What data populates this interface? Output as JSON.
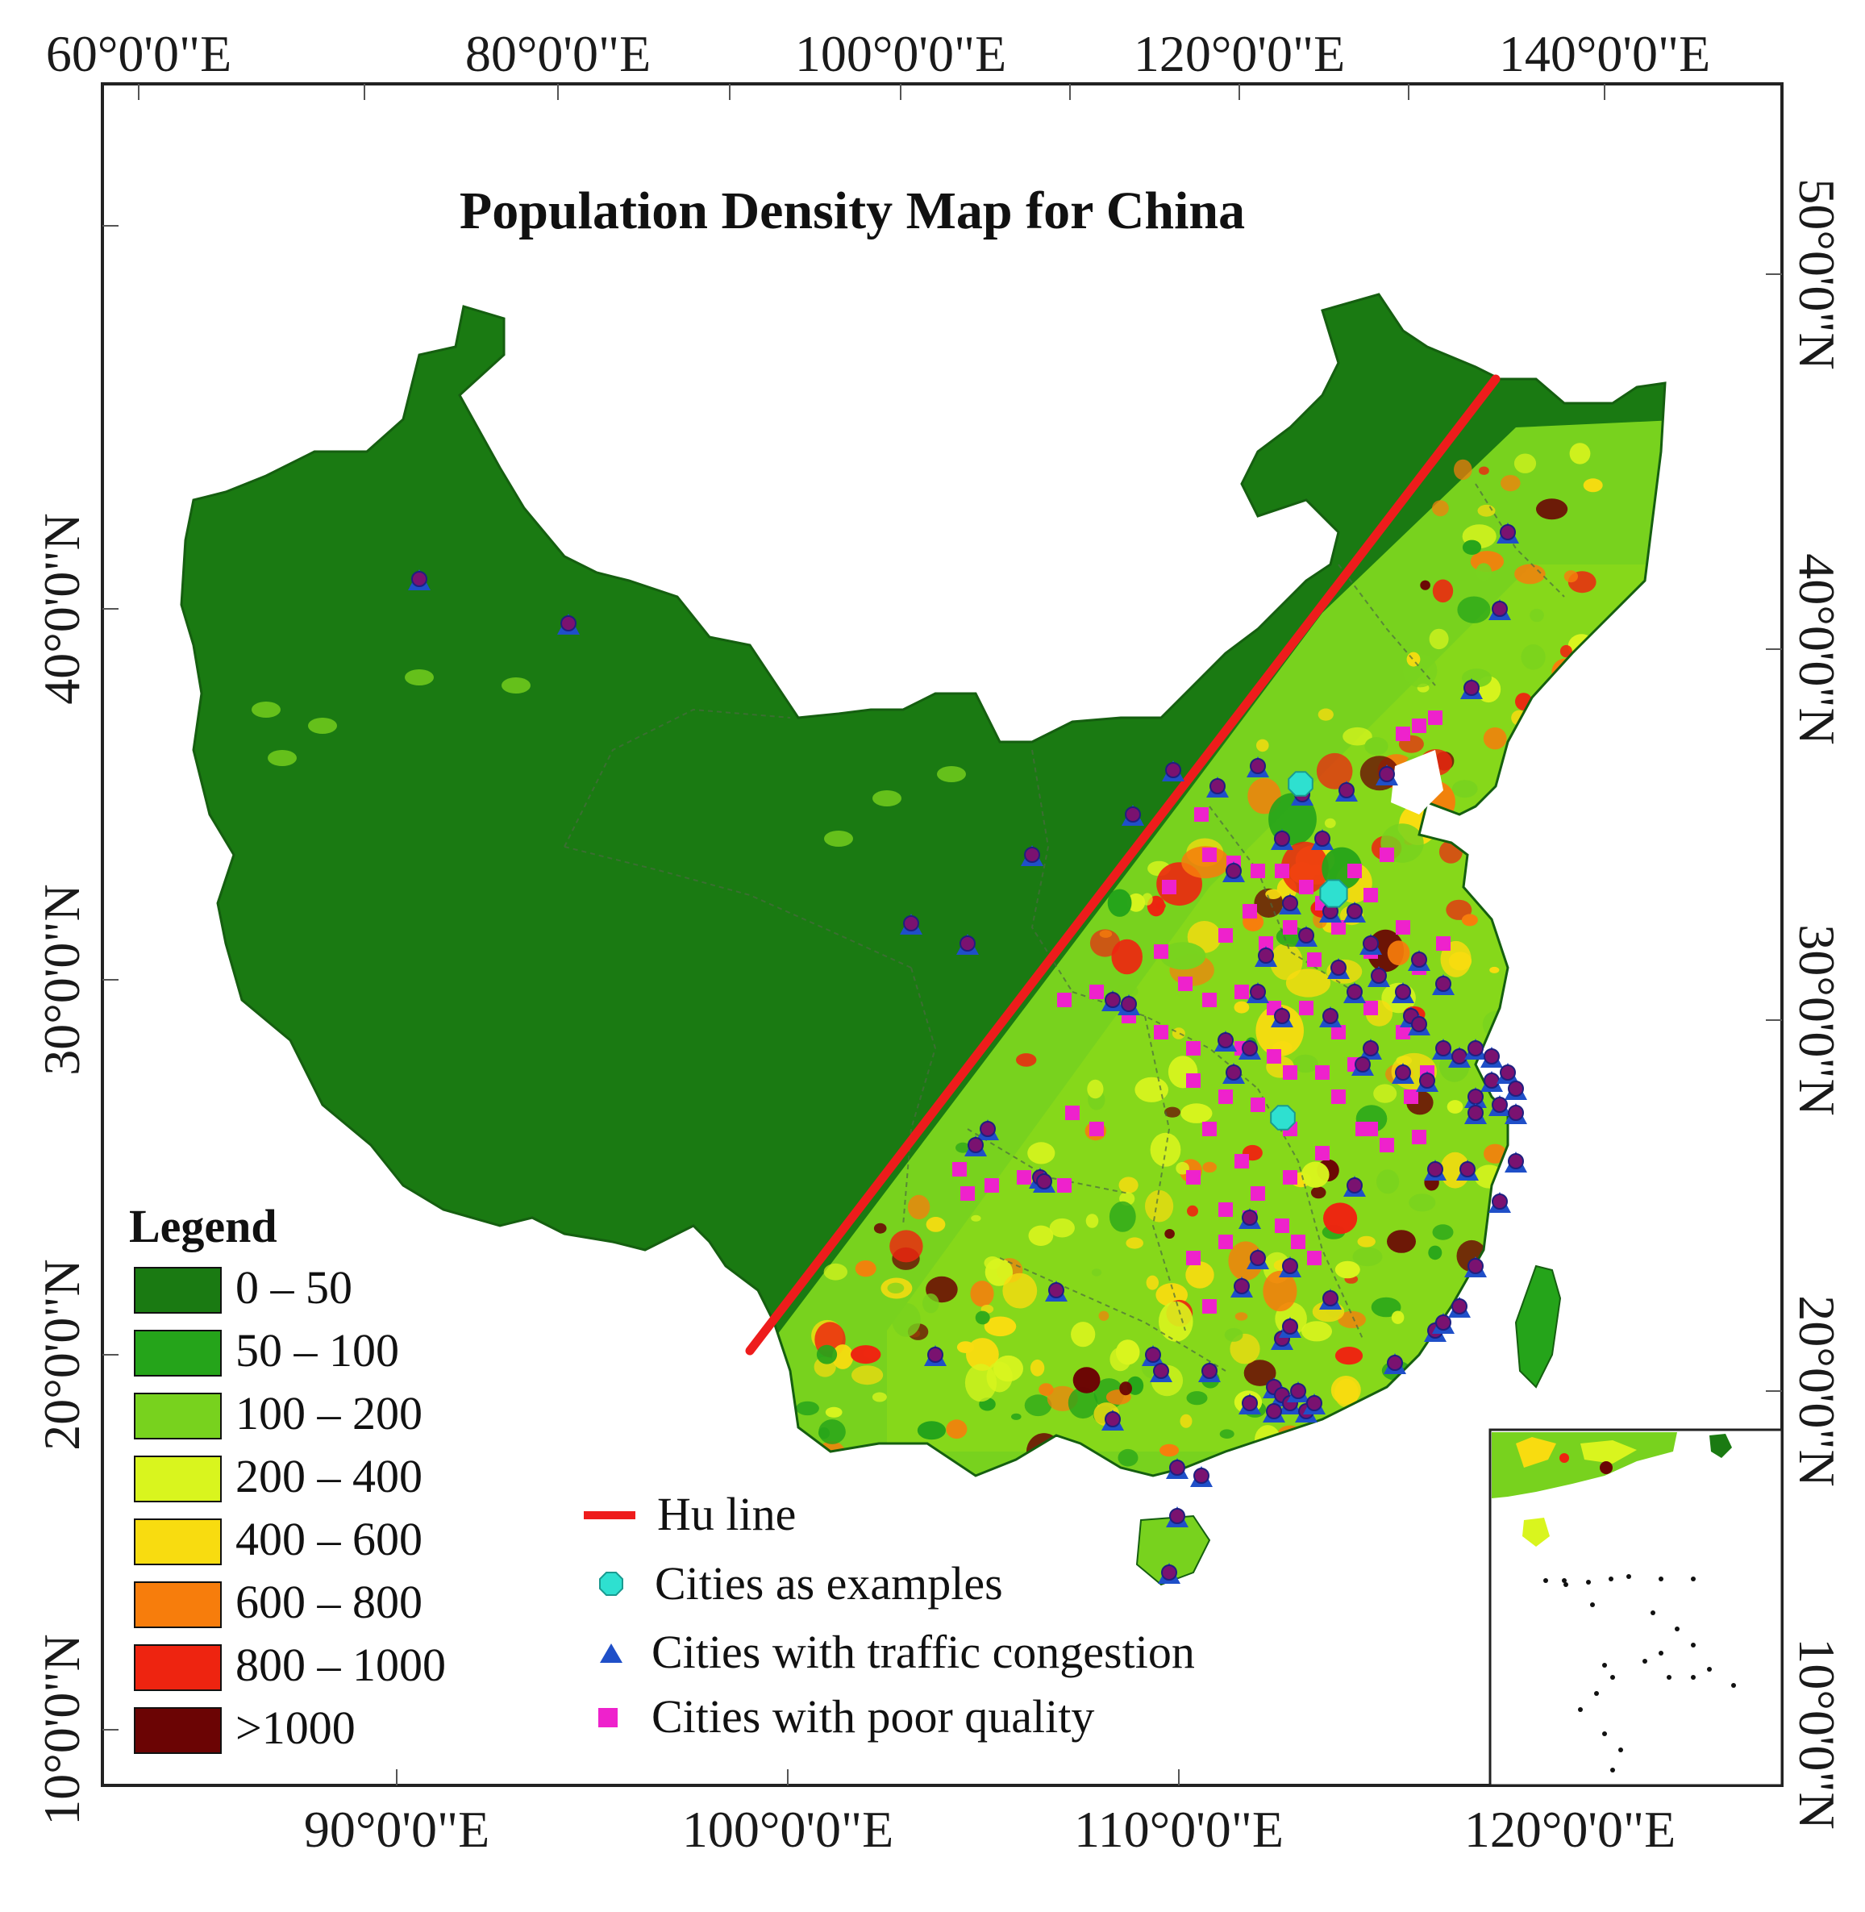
{
  "title": "Population Density Map for China",
  "top_axis_labels": [
    "60°0'0\"E",
    "80°0'0\"E",
    "100°0'0\"E",
    "120°0'0\"E",
    "140°0'0\"E"
  ],
  "bottom_axis_labels": [
    "90°0'0\"E",
    "100°0'0\"E",
    "110°0'0\"E",
    "120°0'0\"E"
  ],
  "left_axis_labels": [
    "40°0'0\"N",
    "30°0'0\"N",
    "20°0'0\"N",
    "10°0'0\"N"
  ],
  "right_axis_labels": [
    "50°0'0\"N",
    "40°0'0\"N",
    "30°0'0\"N",
    "20°0'0\"N",
    "10°0'0\"N"
  ],
  "legend": {
    "title": "Legend",
    "classes": [
      {
        "label": "0 – 50",
        "color": "#1a7a12"
      },
      {
        "label": "50 – 100",
        "color": "#25a41a"
      },
      {
        "label": "100 – 200",
        "color": "#78d21e"
      },
      {
        "label": "200 – 400",
        "color": "#d9f51e"
      },
      {
        "label": "400 – 600",
        "color": "#f8dc10"
      },
      {
        "label": "600 – 800",
        "color": "#f77d0c"
      },
      {
        "label": "800 – 1000",
        "color": "#ee2410"
      },
      {
        "label": ">1000",
        "color": "#6b0404"
      }
    ]
  },
  "symbol_legend": [
    {
      "label": "Hu line",
      "symbol": "red-line",
      "color": "#ee1c1c"
    },
    {
      "label": "Cities as examples",
      "symbol": "cyan-octagon",
      "color": "#2ee0d0"
    },
    {
      "label": "Cities with traffic congestion",
      "symbol": "blue-triangle",
      "color": "#1f4fc8"
    },
    {
      "label": "Cities with poor quality",
      "symbol": "magenta-square",
      "color": "#ee22cc"
    }
  ],
  "colors": {
    "frame": "#222222",
    "hu_line": "#ee1c1c",
    "city_dot": "#7a1270",
    "province_border": "#4a6a40"
  }
}
